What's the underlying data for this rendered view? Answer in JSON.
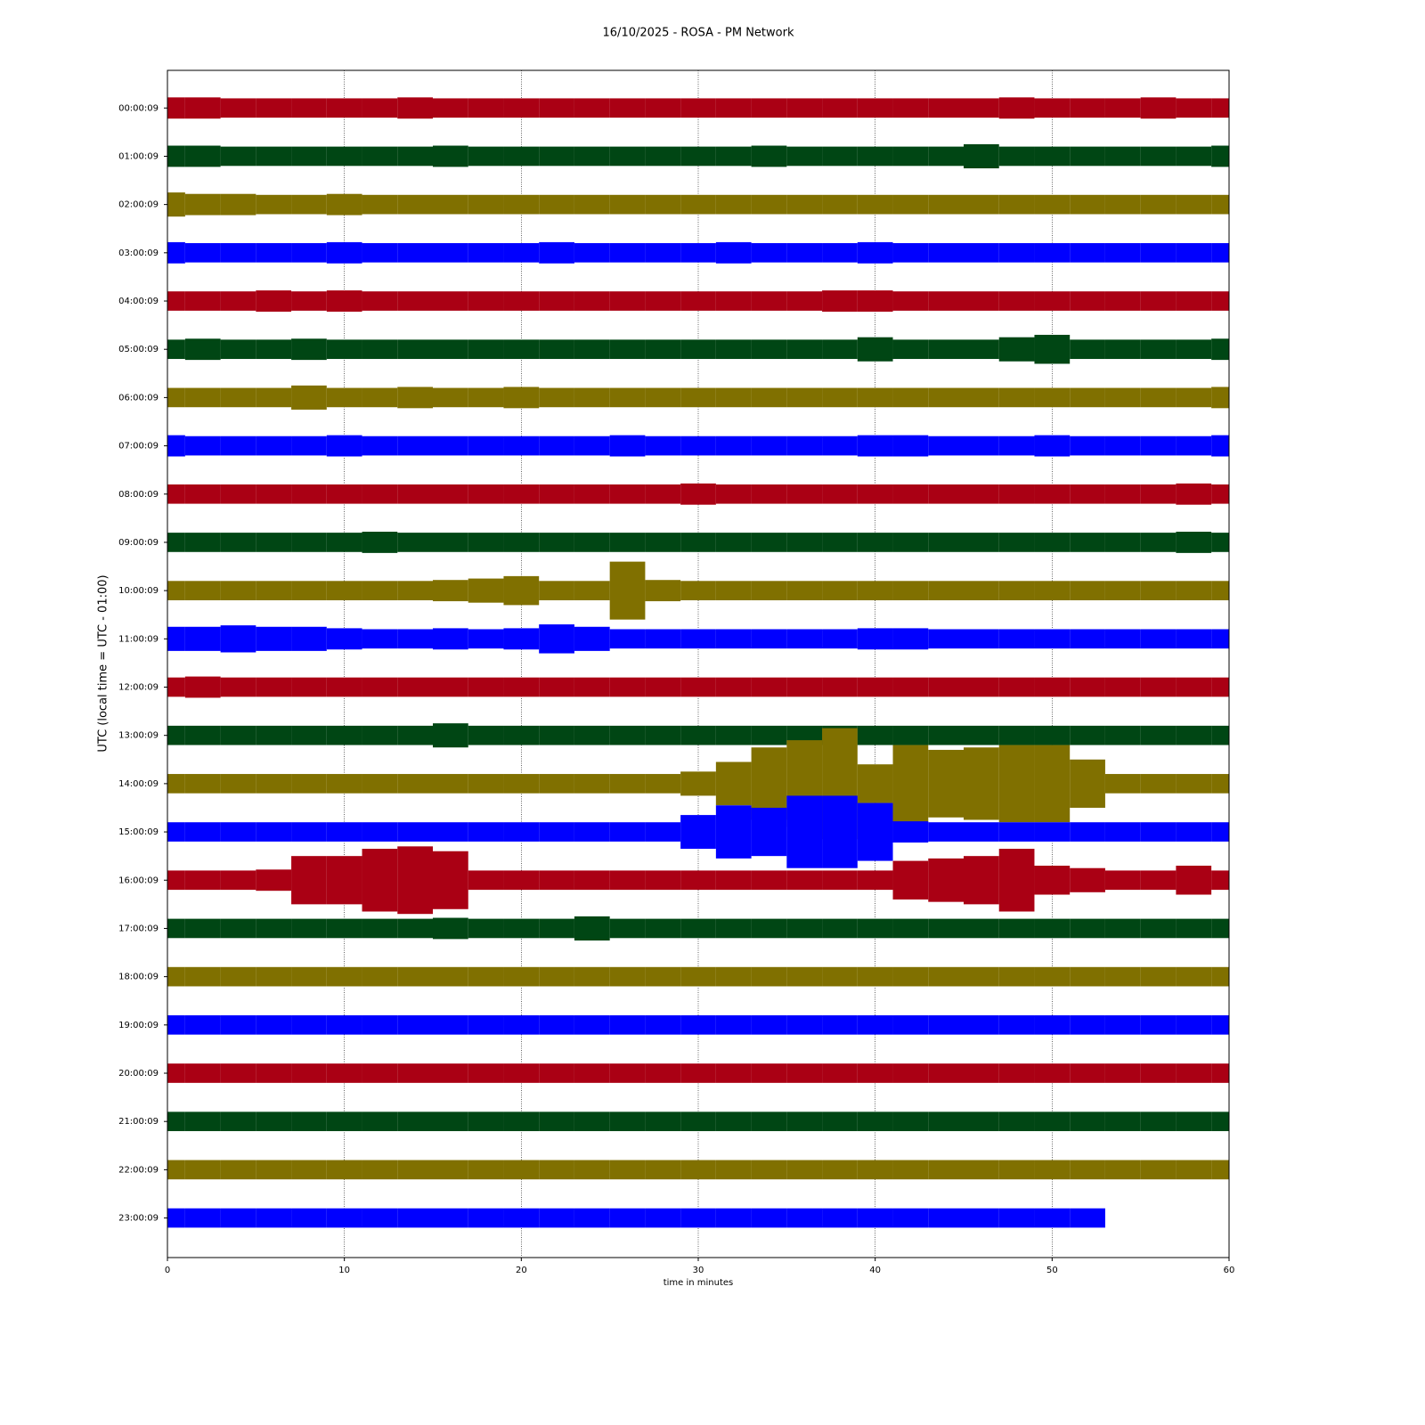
{
  "chart_data": {
    "type": "helicorder",
    "title": "16/10/2025 - ROSA - PM Network",
    "xlabel": "time in minutes",
    "ylabel": "UTC (local time = UTC - 01:00)",
    "xlim": [
      0,
      60
    ],
    "xticks": [
      0,
      10,
      20,
      30,
      40,
      50,
      60
    ],
    "grid": true,
    "categories": [
      "00:00:09",
      "01:00:09",
      "02:00:09",
      "03:00:09",
      "04:00:09",
      "05:00:09",
      "06:00:09",
      "07:00:09",
      "08:00:09",
      "09:00:09",
      "10:00:09",
      "11:00:09",
      "12:00:09",
      "13:00:09",
      "14:00:09",
      "15:00:09",
      "16:00:09",
      "17:00:09",
      "18:00:09",
      "19:00:09",
      "20:00:09",
      "21:00:09",
      "22:00:09",
      "23:00:09"
    ],
    "x": [
      0,
      2,
      4,
      6,
      8,
      10,
      12,
      14,
      16,
      18,
      20,
      22,
      24,
      26,
      28,
      30,
      32,
      34,
      36,
      38,
      40,
      42,
      44,
      46,
      48,
      50,
      52,
      54,
      56,
      58,
      60
    ],
    "series": [
      {
        "color": "#aa0014",
        "values": [
          0.22,
          0.22,
          0.2,
          0.2,
          0.2,
          0.2,
          0.2,
          0.22,
          0.2,
          0.2,
          0.2,
          0.2,
          0.2,
          0.2,
          0.2,
          0.2,
          0.2,
          0.2,
          0.2,
          0.2,
          0.2,
          0.2,
          0.2,
          0.2,
          0.22,
          0.2,
          0.2,
          0.2,
          0.22,
          0.2,
          0.2
        ]
      },
      {
        "color": "#004614",
        "values": [
          0.22,
          0.22,
          0.2,
          0.2,
          0.2,
          0.2,
          0.2,
          0.2,
          0.22,
          0.2,
          0.2,
          0.2,
          0.2,
          0.2,
          0.2,
          0.2,
          0.2,
          0.22,
          0.2,
          0.2,
          0.2,
          0.2,
          0.2,
          0.25,
          0.2,
          0.2,
          0.2,
          0.2,
          0.2,
          0.2,
          0.22
        ]
      },
      {
        "color": "#807000",
        "values": [
          0.25,
          0.22,
          0.22,
          0.2,
          0.2,
          0.22,
          0.2,
          0.2,
          0.2,
          0.2,
          0.2,
          0.2,
          0.2,
          0.2,
          0.2,
          0.2,
          0.2,
          0.2,
          0.2,
          0.2,
          0.2,
          0.2,
          0.2,
          0.2,
          0.2,
          0.2,
          0.2,
          0.2,
          0.2,
          0.2,
          0.2
        ]
      },
      {
        "color": "#0000ff",
        "values": [
          0.22,
          0.2,
          0.2,
          0.2,
          0.2,
          0.22,
          0.2,
          0.2,
          0.2,
          0.2,
          0.2,
          0.22,
          0.2,
          0.2,
          0.2,
          0.2,
          0.22,
          0.2,
          0.2,
          0.2,
          0.22,
          0.2,
          0.2,
          0.2,
          0.2,
          0.2,
          0.2,
          0.2,
          0.2,
          0.2,
          0.2
        ]
      },
      {
        "color": "#aa0014",
        "values": [
          0.2,
          0.2,
          0.2,
          0.22,
          0.2,
          0.22,
          0.2,
          0.2,
          0.2,
          0.2,
          0.2,
          0.2,
          0.2,
          0.2,
          0.2,
          0.2,
          0.2,
          0.2,
          0.2,
          0.22,
          0.22,
          0.2,
          0.2,
          0.2,
          0.2,
          0.2,
          0.2,
          0.2,
          0.2,
          0.2,
          0.2
        ]
      },
      {
        "color": "#004614",
        "values": [
          0.2,
          0.22,
          0.2,
          0.2,
          0.22,
          0.2,
          0.2,
          0.2,
          0.2,
          0.2,
          0.2,
          0.2,
          0.2,
          0.2,
          0.2,
          0.2,
          0.2,
          0.2,
          0.2,
          0.2,
          0.25,
          0.2,
          0.2,
          0.2,
          0.25,
          0.3,
          0.2,
          0.2,
          0.2,
          0.2,
          0.22
        ]
      },
      {
        "color": "#807000",
        "values": [
          0.2,
          0.2,
          0.2,
          0.2,
          0.25,
          0.2,
          0.2,
          0.22,
          0.2,
          0.2,
          0.22,
          0.2,
          0.2,
          0.2,
          0.2,
          0.2,
          0.2,
          0.2,
          0.2,
          0.2,
          0.2,
          0.2,
          0.2,
          0.2,
          0.2,
          0.2,
          0.2,
          0.2,
          0.2,
          0.2,
          0.22
        ]
      },
      {
        "color": "#0000ff",
        "values": [
          0.22,
          0.2,
          0.2,
          0.2,
          0.2,
          0.22,
          0.2,
          0.2,
          0.2,
          0.2,
          0.2,
          0.2,
          0.2,
          0.22,
          0.2,
          0.2,
          0.2,
          0.2,
          0.2,
          0.2,
          0.22,
          0.22,
          0.2,
          0.2,
          0.2,
          0.22,
          0.2,
          0.2,
          0.2,
          0.2,
          0.22
        ]
      },
      {
        "color": "#aa0014",
        "values": [
          0.2,
          0.2,
          0.2,
          0.2,
          0.2,
          0.2,
          0.2,
          0.2,
          0.2,
          0.2,
          0.2,
          0.2,
          0.2,
          0.2,
          0.2,
          0.22,
          0.2,
          0.2,
          0.2,
          0.2,
          0.2,
          0.2,
          0.2,
          0.2,
          0.2,
          0.2,
          0.2,
          0.2,
          0.2,
          0.22,
          0.2
        ]
      },
      {
        "color": "#004614",
        "values": [
          0.2,
          0.2,
          0.2,
          0.2,
          0.2,
          0.2,
          0.22,
          0.2,
          0.2,
          0.2,
          0.2,
          0.2,
          0.2,
          0.2,
          0.2,
          0.2,
          0.2,
          0.2,
          0.2,
          0.2,
          0.2,
          0.2,
          0.2,
          0.2,
          0.2,
          0.2,
          0.2,
          0.2,
          0.2,
          0.22,
          0.2
        ]
      },
      {
        "color": "#807000",
        "values": [
          0.2,
          0.2,
          0.2,
          0.2,
          0.2,
          0.2,
          0.2,
          0.2,
          0.22,
          0.25,
          0.3,
          0.2,
          0.2,
          0.6,
          0.22,
          0.2,
          0.2,
          0.2,
          0.2,
          0.2,
          0.2,
          0.2,
          0.2,
          0.2,
          0.2,
          0.2,
          0.2,
          0.2,
          0.2,
          0.2,
          0.2
        ]
      },
      {
        "color": "#0000ff",
        "values": [
          0.25,
          0.25,
          0.28,
          0.25,
          0.25,
          0.22,
          0.2,
          0.2,
          0.22,
          0.2,
          0.22,
          0.3,
          0.25,
          0.2,
          0.2,
          0.2,
          0.2,
          0.2,
          0.2,
          0.2,
          0.22,
          0.22,
          0.2,
          0.2,
          0.2,
          0.2,
          0.2,
          0.2,
          0.2,
          0.2,
          0.2
        ]
      },
      {
        "color": "#aa0014",
        "values": [
          0.2,
          0.22,
          0.2,
          0.2,
          0.2,
          0.2,
          0.2,
          0.2,
          0.2,
          0.2,
          0.2,
          0.2,
          0.2,
          0.2,
          0.2,
          0.2,
          0.2,
          0.2,
          0.2,
          0.2,
          0.2,
          0.2,
          0.2,
          0.2,
          0.2,
          0.2,
          0.2,
          0.2,
          0.2,
          0.2,
          0.2
        ]
      },
      {
        "color": "#004614",
        "values": [
          0.2,
          0.2,
          0.2,
          0.2,
          0.2,
          0.2,
          0.2,
          0.2,
          0.25,
          0.2,
          0.2,
          0.2,
          0.2,
          0.2,
          0.2,
          0.2,
          0.2,
          0.2,
          0.2,
          0.2,
          0.2,
          0.2,
          0.2,
          0.2,
          0.2,
          0.2,
          0.2,
          0.2,
          0.2,
          0.2,
          0.2
        ]
      },
      {
        "color": "#807000",
        "values": [
          0.2,
          0.2,
          0.2,
          0.2,
          0.2,
          0.2,
          0.2,
          0.2,
          0.2,
          0.2,
          0.2,
          0.2,
          0.2,
          0.2,
          0.2,
          0.25,
          0.45,
          0.75,
          0.9,
          1.15,
          0.4,
          0.8,
          0.7,
          0.75,
          0.8,
          0.8,
          0.5,
          0.2,
          0.2,
          0.2,
          0.2
        ]
      },
      {
        "color": "#0000ff",
        "values": [
          0.2,
          0.2,
          0.2,
          0.2,
          0.2,
          0.2,
          0.2,
          0.2,
          0.2,
          0.2,
          0.2,
          0.2,
          0.2,
          0.2,
          0.2,
          0.35,
          0.55,
          0.5,
          0.75,
          0.75,
          0.6,
          0.22,
          0.2,
          0.2,
          0.2,
          0.2,
          0.2,
          0.2,
          0.2,
          0.2,
          0.2
        ]
      },
      {
        "color": "#aa0014",
        "values": [
          0.2,
          0.2,
          0.2,
          0.22,
          0.5,
          0.5,
          0.65,
          0.7,
          0.6,
          0.2,
          0.2,
          0.2,
          0.2,
          0.2,
          0.2,
          0.2,
          0.2,
          0.2,
          0.2,
          0.2,
          0.2,
          0.4,
          0.45,
          0.5,
          0.65,
          0.3,
          0.25,
          0.2,
          0.2,
          0.3,
          0.2
        ]
      },
      {
        "color": "#004614",
        "values": [
          0.2,
          0.2,
          0.2,
          0.2,
          0.2,
          0.2,
          0.2,
          0.2,
          0.22,
          0.2,
          0.2,
          0.2,
          0.25,
          0.2,
          0.2,
          0.2,
          0.2,
          0.2,
          0.2,
          0.2,
          0.2,
          0.2,
          0.2,
          0.2,
          0.2,
          0.2,
          0.2,
          0.2,
          0.2,
          0.2,
          0.2
        ]
      },
      {
        "color": "#807000",
        "values": [
          0.2,
          0.2,
          0.2,
          0.2,
          0.2,
          0.2,
          0.2,
          0.2,
          0.2,
          0.2,
          0.2,
          0.2,
          0.2,
          0.2,
          0.2,
          0.2,
          0.2,
          0.2,
          0.2,
          0.2,
          0.2,
          0.2,
          0.2,
          0.2,
          0.2,
          0.2,
          0.2,
          0.2,
          0.2,
          0.2,
          0.2
        ]
      },
      {
        "color": "#0000ff",
        "values": [
          0.2,
          0.2,
          0.2,
          0.2,
          0.2,
          0.2,
          0.2,
          0.2,
          0.2,
          0.2,
          0.2,
          0.2,
          0.2,
          0.2,
          0.2,
          0.2,
          0.2,
          0.2,
          0.2,
          0.2,
          0.2,
          0.2,
          0.2,
          0.2,
          0.2,
          0.2,
          0.2,
          0.2,
          0.2,
          0.2,
          0.2
        ]
      },
      {
        "color": "#aa0014",
        "values": [
          0.2,
          0.2,
          0.2,
          0.2,
          0.2,
          0.2,
          0.2,
          0.2,
          0.2,
          0.2,
          0.2,
          0.2,
          0.2,
          0.2,
          0.2,
          0.2,
          0.2,
          0.2,
          0.2,
          0.2,
          0.2,
          0.2,
          0.2,
          0.2,
          0.2,
          0.2,
          0.2,
          0.2,
          0.2,
          0.2,
          0.2
        ]
      },
      {
        "color": "#004614",
        "values": [
          0.2,
          0.2,
          0.2,
          0.2,
          0.2,
          0.2,
          0.2,
          0.2,
          0.2,
          0.2,
          0.2,
          0.2,
          0.2,
          0.2,
          0.2,
          0.2,
          0.2,
          0.2,
          0.2,
          0.2,
          0.2,
          0.2,
          0.2,
          0.2,
          0.2,
          0.2,
          0.2,
          0.2,
          0.2,
          0.2,
          0.2
        ]
      },
      {
        "color": "#807000",
        "values": [
          0.2,
          0.2,
          0.2,
          0.2,
          0.2,
          0.2,
          0.2,
          0.2,
          0.2,
          0.2,
          0.2,
          0.2,
          0.2,
          0.2,
          0.2,
          0.2,
          0.2,
          0.2,
          0.2,
          0.2,
          0.2,
          0.2,
          0.2,
          0.2,
          0.2,
          0.2,
          0.2,
          0.2,
          0.2,
          0.2,
          0.2
        ]
      },
      {
        "color": "#0000ff",
        "values": [
          0.2,
          0.2,
          0.2,
          0.2,
          0.2,
          0.2,
          0.2,
          0.2,
          0.2,
          0.2,
          0.2,
          0.2,
          0.2,
          0.2,
          0.2,
          0.2,
          0.2,
          0.2,
          0.2,
          0.2,
          0.2,
          0.2,
          0.2,
          0.2,
          0.2,
          0.2,
          0.2,
          null,
          null,
          null,
          null
        ]
      }
    ]
  }
}
